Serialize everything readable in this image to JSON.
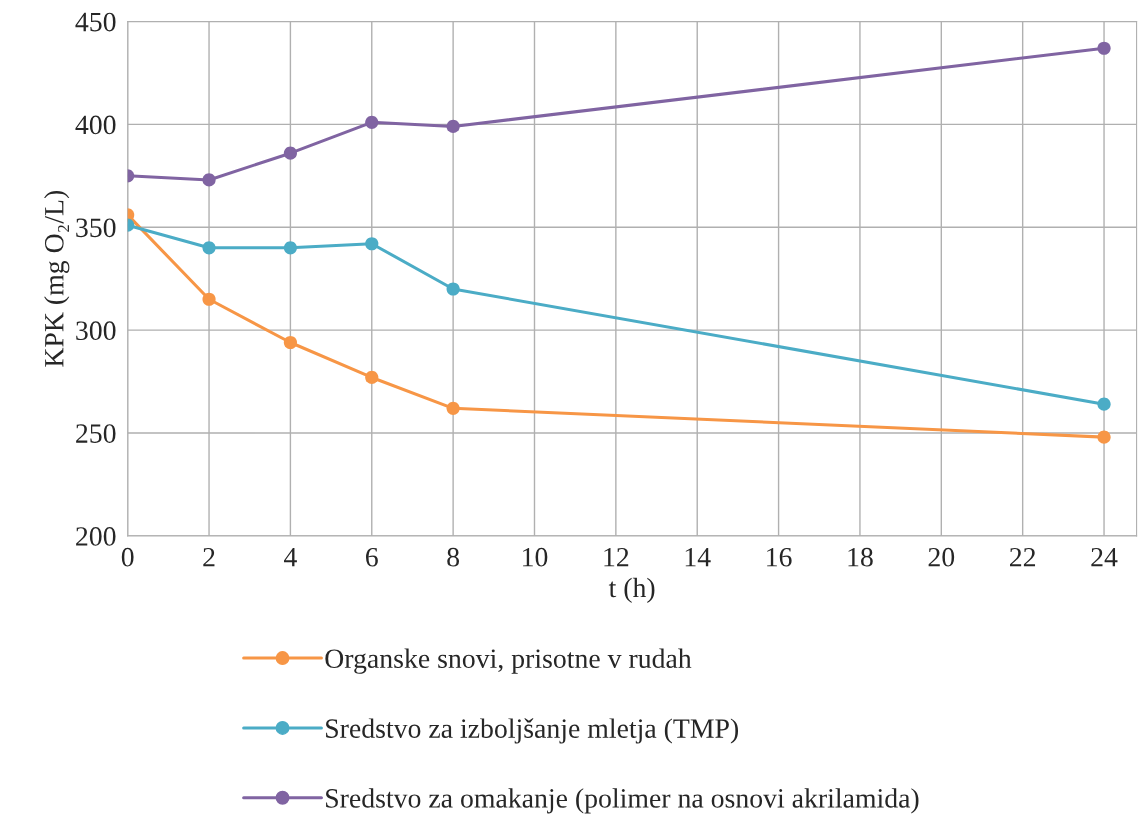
{
  "chart_data": {
    "type": "line",
    "xlabel": "t (h)",
    "ylabel": "KPK (mg O₂/L)",
    "x": [
      0,
      2,
      4,
      6,
      8,
      24
    ],
    "xlim": [
      0,
      24.8
    ],
    "xticks": [
      0,
      2,
      4,
      6,
      8,
      10,
      12,
      14,
      16,
      18,
      20,
      22,
      24
    ],
    "ylim": [
      200,
      450
    ],
    "yticks": [
      200,
      250,
      300,
      350,
      400,
      450
    ],
    "grid": true,
    "legend": "bottom",
    "marker": "circle",
    "line_style": "solid",
    "series": [
      {
        "name": "Organske snovi, prisotne v rudah",
        "color": "#f79646",
        "values": [
          356,
          315,
          294,
          277,
          262,
          248
        ]
      },
      {
        "name": "Sredstvo za izboljšanje mletja (TMP)",
        "color": "#4bacc6",
        "values": [
          351,
          340,
          340,
          342,
          320,
          264
        ]
      },
      {
        "name": "Sredstvo za omakanje (polimer na osnovi akrilamida)",
        "color": "#8064a2",
        "values": [
          375,
          373,
          386,
          401,
          399,
          437
        ]
      }
    ]
  }
}
